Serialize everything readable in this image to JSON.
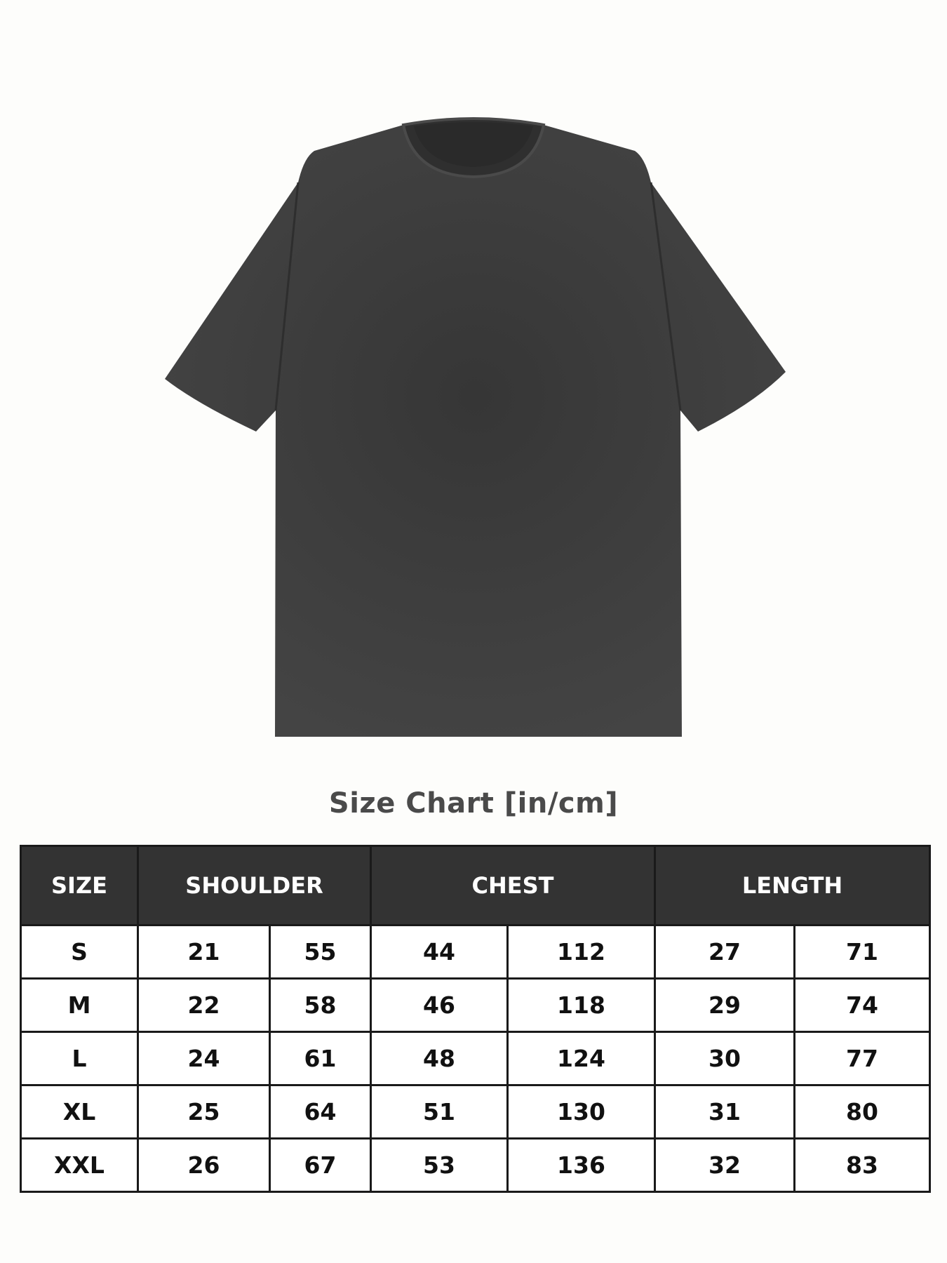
{
  "title": "Size Chart [in/cm]",
  "headers": [
    "SIZE",
    "SHOULDER",
    "CHEST",
    "LENGTH"
  ],
  "rows": [
    [
      "S",
      "21",
      "55",
      "44",
      "112",
      "27",
      "71"
    ],
    [
      "M",
      "22",
      "58",
      "46",
      "118",
      "29",
      "74"
    ],
    [
      "L",
      "24",
      "61",
      "48",
      "124",
      "30",
      "77"
    ],
    [
      "XL",
      "25",
      "64",
      "51",
      "130",
      "31",
      "80"
    ],
    [
      "XXL",
      "26",
      "67",
      "53",
      "136",
      "32",
      "83"
    ]
  ],
  "colors": {
    "shirt": "#3a3a3a",
    "header_bg": "#333333",
    "title": "#4a4a4a"
  }
}
